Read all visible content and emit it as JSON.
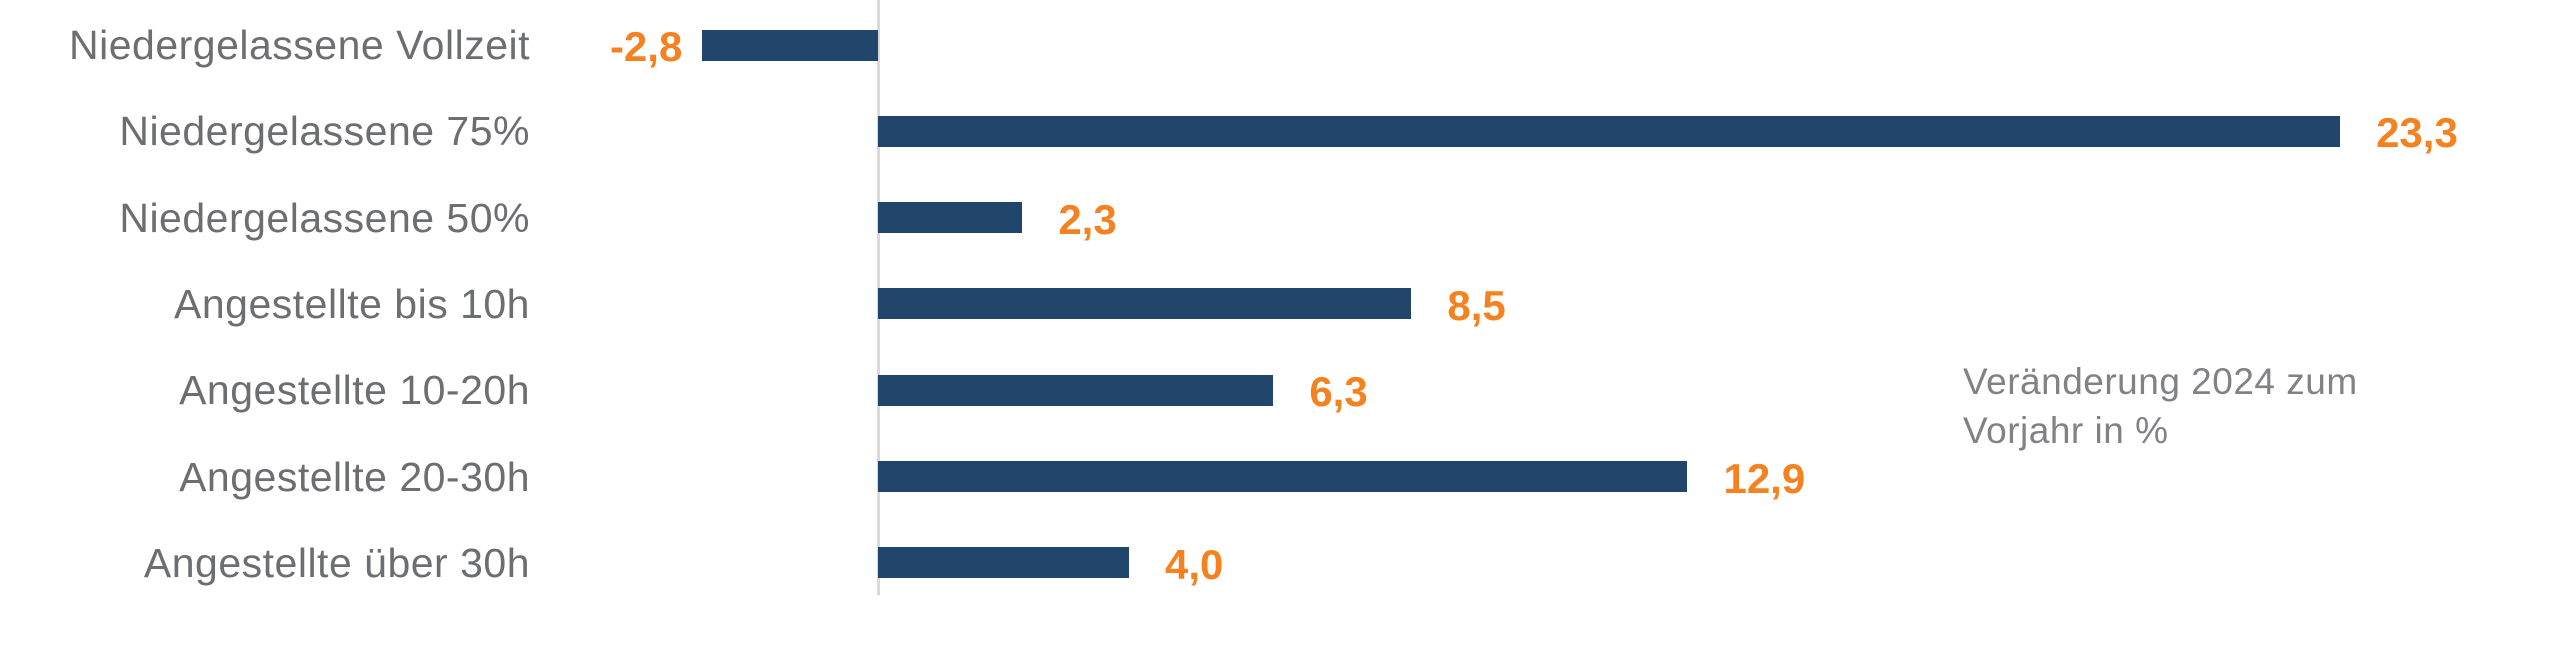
{
  "chart_data": {
    "type": "bar",
    "orientation": "horizontal",
    "title": "",
    "categories": [
      "Niedergelassene Vollzeit",
      "Niedergelassene 75%",
      "Niedergelassene 50%",
      "Angestellte bis 10h",
      "Angestellte 10-20h",
      "Angestellte 20-30h",
      "Angestellte über 30h"
    ],
    "values": [
      -2.8,
      23.3,
      2.3,
      8.5,
      6.3,
      12.9,
      4.0
    ],
    "value_labels": [
      "-2,8",
      "23,3",
      "2,3",
      "8,5",
      "6,3",
      "12,9",
      "4,0"
    ],
    "xlabel": "",
    "ylabel": "",
    "xlim": [
      -4.5,
      26.8
    ],
    "grid": false,
    "legend_position": "none",
    "annotation_lines": [
      "Veränderung 2024 zum",
      "Vorjahr in %"
    ],
    "colors": {
      "bar": "#21456b",
      "value_label": "#f58220",
      "category_label": "#6d6e71",
      "annotation_text": "#808285",
      "axis_line": "#d9d9d9",
      "background": "#ffffff"
    }
  }
}
